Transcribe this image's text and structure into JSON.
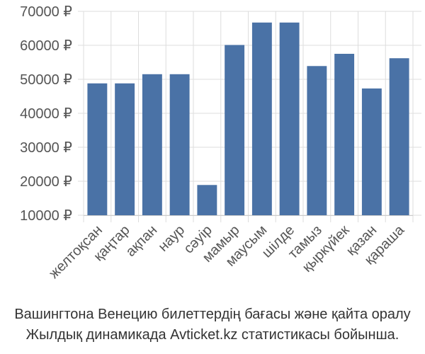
{
  "chart_data": {
    "type": "bar",
    "title": "",
    "xlabel": "",
    "ylabel": "",
    "categories": [
      "желтоқсан",
      "қаңтар",
      "ақпан",
      "наур",
      "сәуір",
      "мамыр",
      "маусым",
      "шілде",
      "тамыз",
      "қыркүйек",
      "қазан",
      "қараша"
    ],
    "values": [
      48800,
      48800,
      51500,
      51500,
      18900,
      60100,
      66700,
      66700,
      53900,
      57500,
      47300,
      56200
    ],
    "ylim": [
      10000,
      70000
    ],
    "yticks": [
      10000,
      20000,
      30000,
      40000,
      50000,
      60000,
      70000
    ],
    "ytick_labels": [
      "10000 ₽",
      "20000 ₽",
      "30000 ₽",
      "40000 ₽",
      "50000 ₽",
      "60000 ₽",
      "70000 ₽"
    ],
    "grid": true,
    "legend": "none"
  },
  "colors": {
    "bar": "#4a72a6",
    "grid": "#dddddd",
    "axis": "#cccccc",
    "tick_text": "#555555",
    "caption_text": "#333333"
  },
  "caption": {
    "line1": "Вашингтона Венецию билеттердің бағасы және қайта оралу",
    "line2": "Жылдық динамикада Avticket.kz статистикасы бойынша."
  }
}
